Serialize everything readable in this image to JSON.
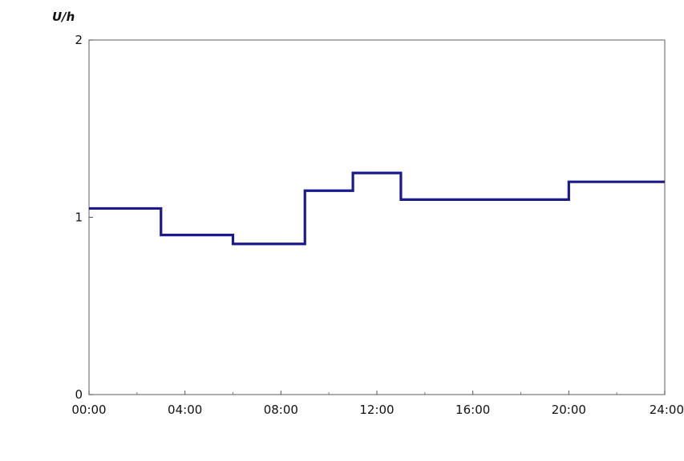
{
  "chart_data": {
    "type": "line",
    "step": true,
    "title": "",
    "ylabel": "U/h",
    "xlabel": "",
    "x_ticks": [
      "00:00",
      "04:00",
      "08:00",
      "12:00",
      "16:00",
      "20:00",
      "24:00"
    ],
    "y_ticks": [
      "0",
      "1",
      "2"
    ],
    "xlim": [
      "00:00",
      "24:00"
    ],
    "ylim": [
      0,
      2
    ],
    "grid": false,
    "series": [
      {
        "color": "#1a1a8c",
        "points": [
          {
            "x": "00:00",
            "y": 1.05
          },
          {
            "x": "03:00",
            "y": 0.9
          },
          {
            "x": "06:00",
            "y": 0.85
          },
          {
            "x": "09:00",
            "y": 1.15
          },
          {
            "x": "11:00",
            "y": 1.25
          },
          {
            "x": "13:00",
            "y": 1.1
          },
          {
            "x": "20:00",
            "y": 1.2
          },
          {
            "x": "24:00",
            "y": 1.2
          }
        ]
      }
    ]
  }
}
